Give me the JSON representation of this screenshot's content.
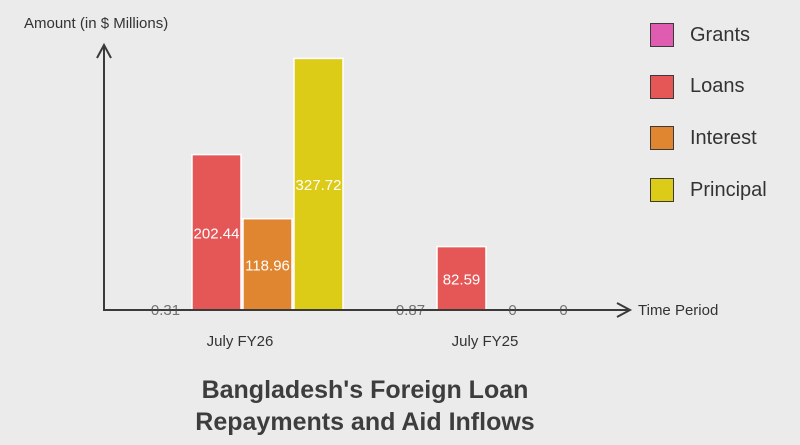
{
  "chart_data": {
    "type": "bar",
    "title_lines": [
      "Bangladesh's Foreign Loan",
      "Repayments and Aid Inflows"
    ],
    "xlabel": "Time Period",
    "ylabel": "Amount (in $ Millions)",
    "categories": [
      "July FY26",
      "July FY25"
    ],
    "series": [
      {
        "name": "Grants",
        "color": "#e05cb0",
        "values": [
          0.31,
          0.87
        ]
      },
      {
        "name": "Loans",
        "color": "#e55656",
        "values": [
          202.44,
          82.59
        ]
      },
      {
        "name": "Interest",
        "color": "#e08530",
        "values": [
          118.96,
          0
        ]
      },
      {
        "name": "Principal",
        "color": "#dccb17",
        "values": [
          327.72,
          0
        ]
      }
    ],
    "value_labels": [
      [
        "0.31",
        "0.87"
      ],
      [
        "202.44",
        "82.59"
      ],
      [
        "118.96",
        "0"
      ],
      [
        "327.72",
        "0"
      ]
    ],
    "ylim": [
      0,
      340
    ],
    "legend_position": "right",
    "grid": false
  }
}
